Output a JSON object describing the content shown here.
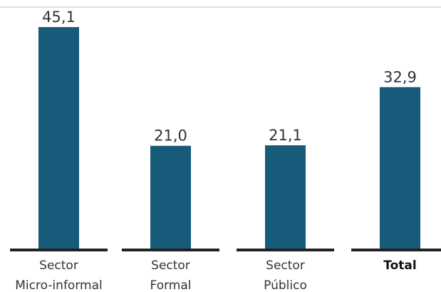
{
  "chart_data": {
    "type": "bar",
    "categories": [
      [
        "Sector",
        "Micro-informal"
      ],
      [
        "Sector",
        "Formal"
      ],
      [
        "Sector",
        "Público"
      ],
      [
        "Total"
      ]
    ],
    "values": [
      45.1,
      21.0,
      21.1,
      32.9
    ],
    "value_labels": [
      "45,1",
      "21,0",
      "21,1",
      "32,9"
    ],
    "bold_categories": [
      false,
      false,
      false,
      true
    ],
    "ylim": [
      0,
      48
    ],
    "grid": false,
    "bar_color": "#175a7a",
    "baseline_color": "#222222",
    "top_rule_color": "#bbbbbb"
  }
}
